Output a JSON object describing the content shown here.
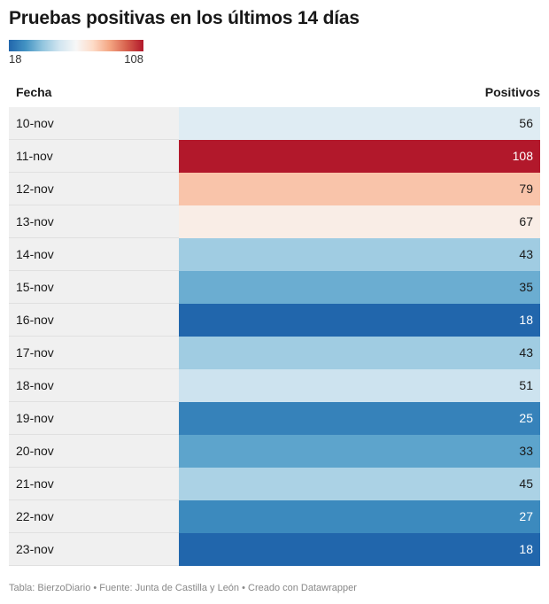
{
  "title": "Pruebas positivas en los últimos 14 días",
  "legend": {
    "min_label": "18",
    "max_label": "108"
  },
  "table": {
    "col_date": "Fecha",
    "col_value": "Positivos"
  },
  "colors": {
    "scale": [
      "#2166ac",
      "#4393c3",
      "#92c5de",
      "#d1e5f0",
      "#f7f7f7",
      "#fddbc7",
      "#f4a582",
      "#d6604d",
      "#b2182b"
    ],
    "dark_text": "#1a1a1a",
    "light_text": "#ffffff"
  },
  "chart_data": {
    "type": "table",
    "title": "Pruebas positivas en los últimos 14 días",
    "color_domain": [
      18,
      108
    ],
    "rows": [
      {
        "date": "10-nov",
        "value": 56
      },
      {
        "date": "11-nov",
        "value": 108
      },
      {
        "date": "12-nov",
        "value": 79
      },
      {
        "date": "13-nov",
        "value": 67
      },
      {
        "date": "14-nov",
        "value": 43
      },
      {
        "date": "15-nov",
        "value": 35
      },
      {
        "date": "16-nov",
        "value": 18
      },
      {
        "date": "17-nov",
        "value": 43
      },
      {
        "date": "18-nov",
        "value": 51
      },
      {
        "date": "19-nov",
        "value": 25
      },
      {
        "date": "20-nov",
        "value": 33
      },
      {
        "date": "21-nov",
        "value": 45
      },
      {
        "date": "22-nov",
        "value": 27
      },
      {
        "date": "23-nov",
        "value": 18
      }
    ]
  },
  "footer": "Tabla: BierzoDiario • Fuente: Junta de Castilla y León • Creado con Datawrapper"
}
